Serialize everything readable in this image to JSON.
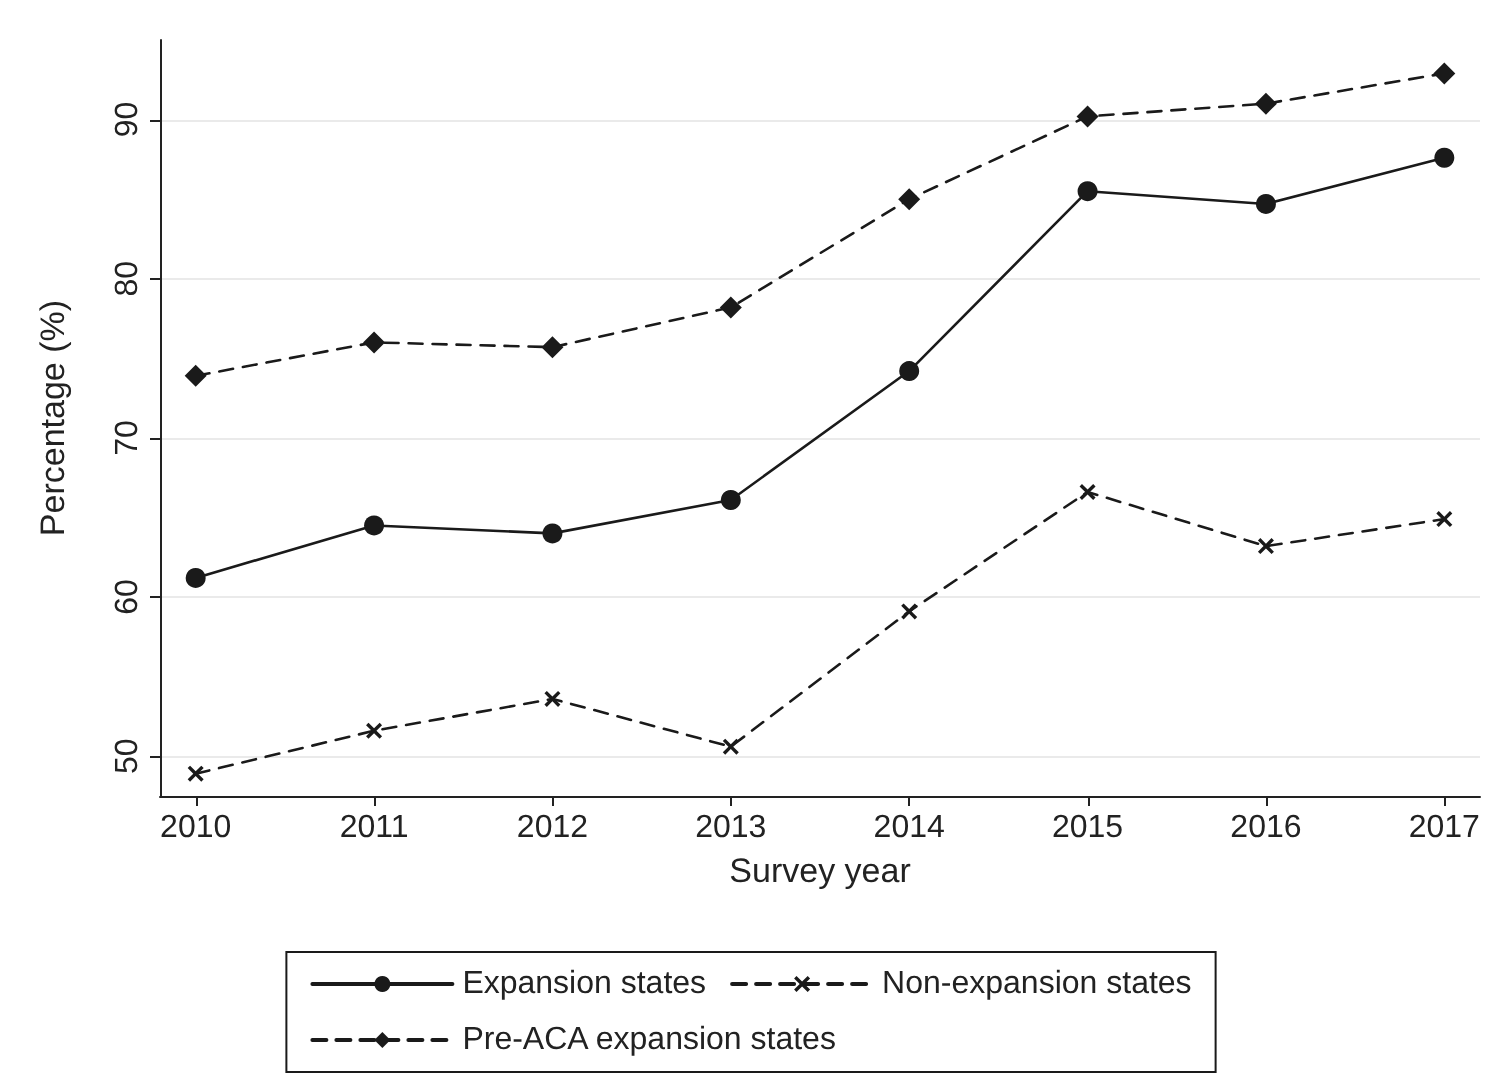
{
  "chart_data": {
    "type": "line",
    "xlabel": "Survey year",
    "ylabel": "Percentage (%)",
    "x": [
      2010,
      2011,
      2012,
      2013,
      2014,
      2015,
      2016,
      2017
    ],
    "xlim": [
      2009.8,
      2017.2
    ],
    "xticks": [
      2010,
      2011,
      2012,
      2013,
      2014,
      2015,
      2016,
      2017
    ],
    "ylim": [
      47.5,
      95
    ],
    "yticks": [
      50,
      60,
      70,
      80,
      90
    ],
    "grid": "y",
    "legend": "bottom",
    "series": [
      {
        "name": "Expansion states",
        "color": "#1a1a1a",
        "marker": "circle",
        "line_style": "solid",
        "values": [
          61.2,
          64.5,
          64.0,
          66.1,
          74.2,
          85.5,
          84.7,
          87.6
        ]
      },
      {
        "name": "Non-expansion states",
        "color": "#1a1a1a",
        "marker": "cross",
        "line_style": "dashed",
        "values": [
          48.9,
          51.6,
          53.6,
          50.6,
          59.1,
          66.6,
          63.2,
          64.9
        ]
      },
      {
        "name": "Pre-ACA expansion states",
        "color": "#1a1a1a",
        "marker": "diamond",
        "line_style": "dashed",
        "values": [
          73.9,
          76.0,
          75.7,
          78.2,
          85.0,
          90.2,
          91.0,
          92.9
        ]
      }
    ]
  }
}
